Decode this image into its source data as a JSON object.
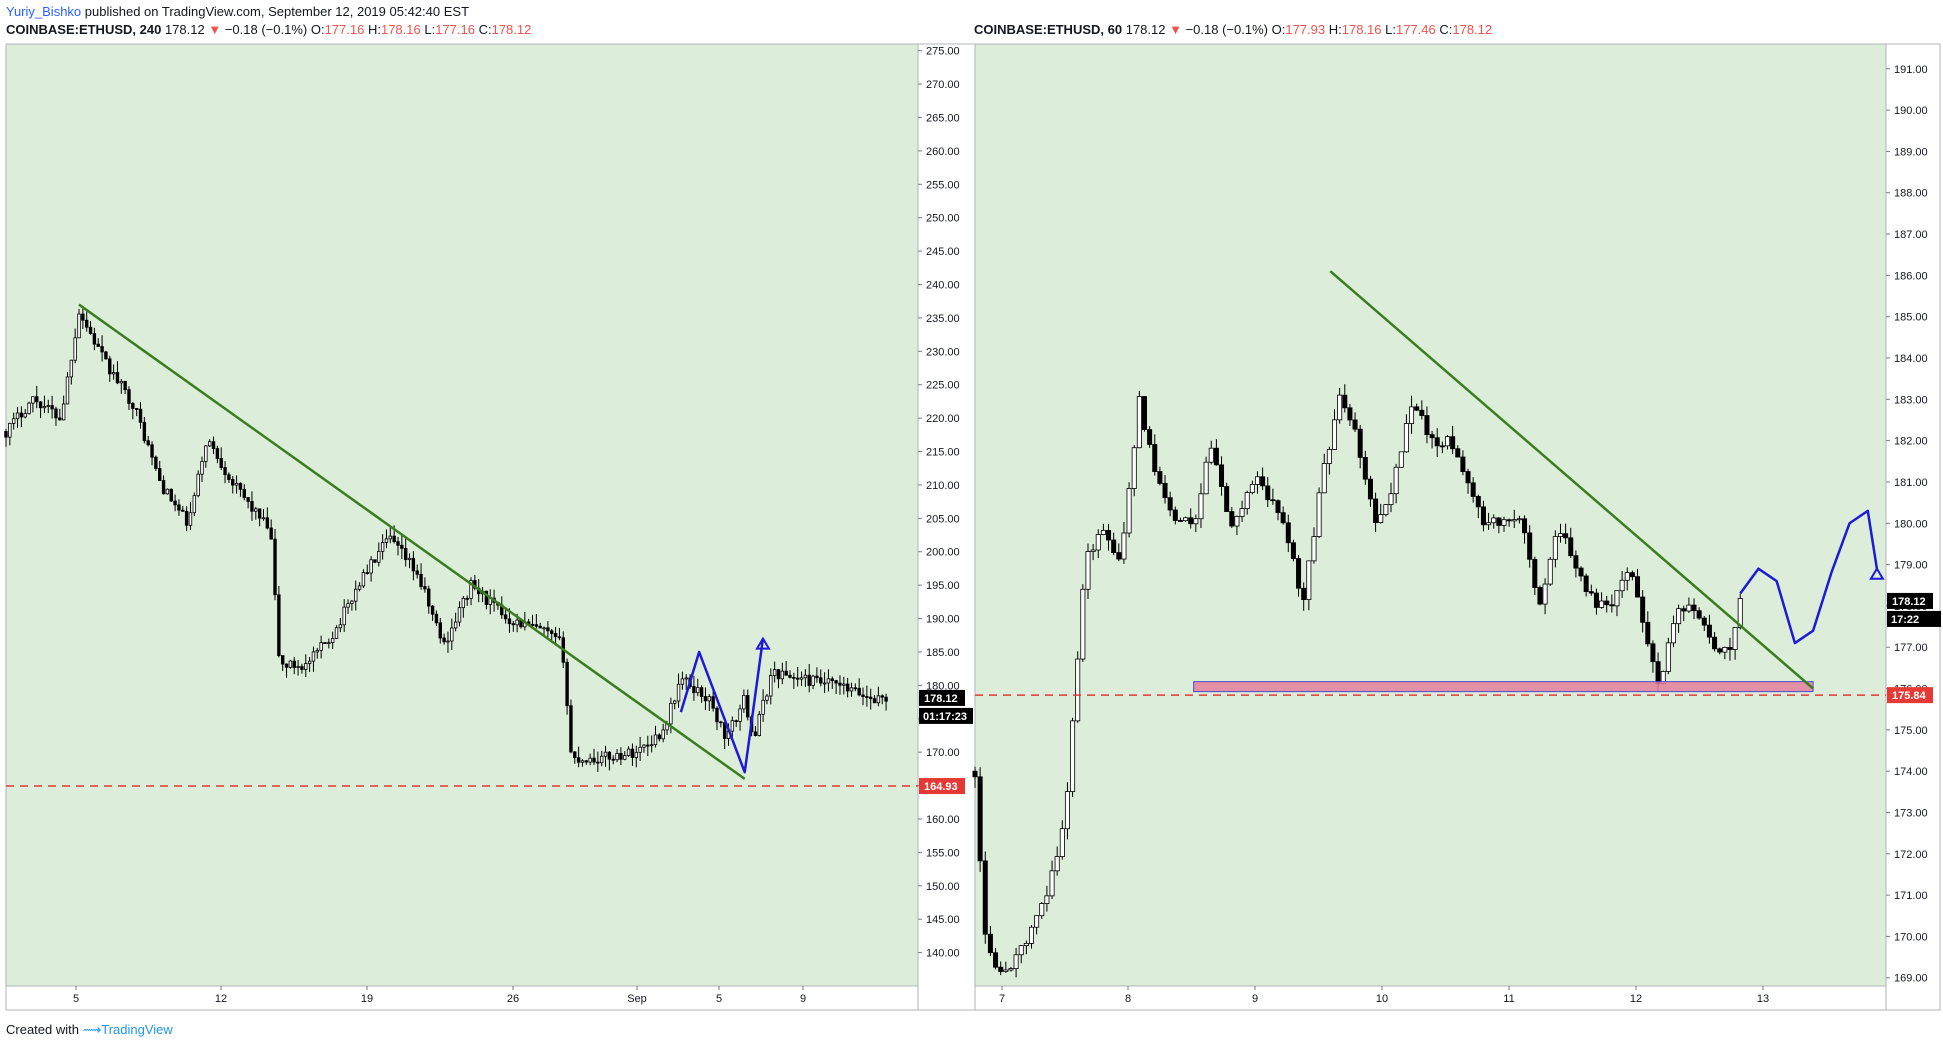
{
  "publish": {
    "author": "Yuriy_Bishko",
    "text": " published on TradingView.com, September 12, 2019 05:42:40 EST"
  },
  "footer": {
    "created": "Created with",
    "brand": "TradingView"
  },
  "left": {
    "symbol": "COINBASE:ETHUSD, 240",
    "last": "178.12",
    "change": "−0.18 (−0.1%)",
    "o": "177.16",
    "h": "178.16",
    "l": "177.16",
    "c": "178.12",
    "price_tag": "178.12",
    "countdown": "01:17:23",
    "level_tag": "164.93"
  },
  "right": {
    "symbol": "COINBASE:ETHUSD, 60",
    "last": "178.12",
    "change": "−0.18 (−0.1%)",
    "o": "177.93",
    "h": "178.16",
    "l": "177.46",
    "c": "178.12",
    "price_tag": "178.12",
    "countdown": "17:22",
    "level_tag": "175.84"
  },
  "colors": {
    "plot_bg": "#dcedda",
    "trendline": "#3a7d1e",
    "projection": "#1f1ad6",
    "level": "#e53935",
    "zone_fill": "#e57f9a",
    "zone_border": "#4a4ad0"
  },
  "chart_data": [
    {
      "type": "candlestick",
      "panel": "left",
      "ylim": [
        135,
        276
      ],
      "y_ticks": [
        140,
        145,
        150,
        155,
        160,
        165,
        170,
        175,
        180,
        185,
        190,
        195,
        200,
        205,
        210,
        215,
        220,
        225,
        230,
        235,
        240,
        245,
        250,
        255,
        260,
        265,
        270,
        275
      ],
      "x_ticks": [
        "5",
        "12",
        "19",
        "26",
        "Sep",
        "5",
        "9"
      ],
      "close_path": [
        [
          0,
          218
        ],
        [
          0.03,
          223
        ],
        [
          0.06,
          220
        ],
        [
          0.08,
          236
        ],
        [
          0.11,
          228
        ],
        [
          0.14,
          222
        ],
        [
          0.17,
          210
        ],
        [
          0.2,
          204
        ],
        [
          0.22,
          217
        ],
        [
          0.25,
          210
        ],
        [
          0.29,
          203
        ],
        [
          0.3,
          183
        ],
        [
          0.33,
          183
        ],
        [
          0.36,
          188
        ],
        [
          0.39,
          196
        ],
        [
          0.42,
          202
        ],
        [
          0.45,
          197
        ],
        [
          0.48,
          186
        ],
        [
          0.51,
          195
        ],
        [
          0.55,
          190
        ],
        [
          0.59,
          188
        ],
        [
          0.61,
          186
        ],
        [
          0.62,
          169
        ],
        [
          0.65,
          169
        ],
        [
          0.69,
          170
        ],
        [
          0.72,
          173
        ],
        [
          0.74,
          181
        ],
        [
          0.77,
          178
        ],
        [
          0.79,
          172
        ],
        [
          0.81,
          178
        ],
        [
          0.82,
          172
        ],
        [
          0.84,
          182
        ],
        [
          0.87,
          181
        ],
        [
          0.91,
          180
        ],
        [
          0.95,
          178
        ],
        [
          0.97,
          178.12
        ]
      ],
      "trendline": {
        "from": [
          0.08,
          237
        ],
        "to": [
          0.81,
          166
        ]
      },
      "projection": [
        [
          0.74,
          176
        ],
        [
          0.76,
          185
        ],
        [
          0.81,
          167
        ],
        [
          0.83,
          187
        ]
      ],
      "level": 164.93,
      "last_price": 178.12
    },
    {
      "type": "candlestick",
      "panel": "right",
      "ylim": [
        168.8,
        191.6
      ],
      "y_ticks": [
        169,
        170,
        171,
        172,
        173,
        174,
        175,
        176,
        177,
        178,
        179,
        180,
        181,
        182,
        183,
        184,
        185,
        186,
        187,
        188,
        189,
        190,
        191
      ],
      "x_ticks": [
        "7",
        "8",
        "9",
        "10",
        "11",
        "12",
        "13"
      ],
      "close_path": [
        [
          0,
          174
        ],
        [
          0.01,
          170
        ],
        [
          0.03,
          169
        ],
        [
          0.06,
          170
        ],
        [
          0.08,
          171
        ],
        [
          0.1,
          173
        ],
        [
          0.12,
          179
        ],
        [
          0.14,
          180
        ],
        [
          0.16,
          179
        ],
        [
          0.18,
          183
        ],
        [
          0.2,
          181
        ],
        [
          0.22,
          180
        ],
        [
          0.24,
          180
        ],
        [
          0.26,
          182
        ],
        [
          0.28,
          180
        ],
        [
          0.31,
          181
        ],
        [
          0.34,
          180
        ],
        [
          0.36,
          178
        ],
        [
          0.38,
          181
        ],
        [
          0.4,
          183
        ],
        [
          0.42,
          182
        ],
        [
          0.44,
          180
        ],
        [
          0.46,
          181
        ],
        [
          0.48,
          183
        ],
        [
          0.5,
          182
        ],
        [
          0.52,
          182
        ],
        [
          0.54,
          181
        ],
        [
          0.56,
          180
        ],
        [
          0.58,
          180
        ],
        [
          0.6,
          180
        ],
        [
          0.62,
          178
        ],
        [
          0.64,
          180
        ],
        [
          0.66,
          179
        ],
        [
          0.68,
          178
        ],
        [
          0.7,
          178
        ],
        [
          0.72,
          179
        ],
        [
          0.74,
          177
        ],
        [
          0.75,
          176
        ],
        [
          0.77,
          178
        ],
        [
          0.79,
          178
        ],
        [
          0.81,
          177
        ],
        [
          0.83,
          177
        ],
        [
          0.84,
          178.12
        ]
      ],
      "trendline": {
        "from": [
          0.39,
          186.1
        ],
        "to": [
          0.92,
          176.0
        ]
      },
      "projection": [
        [
          0.84,
          178.3
        ],
        [
          0.86,
          178.9
        ],
        [
          0.88,
          178.6
        ],
        [
          0.9,
          177.1
        ],
        [
          0.92,
          177.4
        ],
        [
          0.94,
          178.8
        ],
        [
          0.96,
          180.0
        ],
        [
          0.98,
          180.3
        ],
        [
          0.99,
          178.9
        ]
      ],
      "zone": {
        "low": 175.84,
        "high": 176.07,
        "from": 0.24,
        "to": 0.92
      },
      "level": 175.84,
      "last_price": 178.12
    }
  ]
}
